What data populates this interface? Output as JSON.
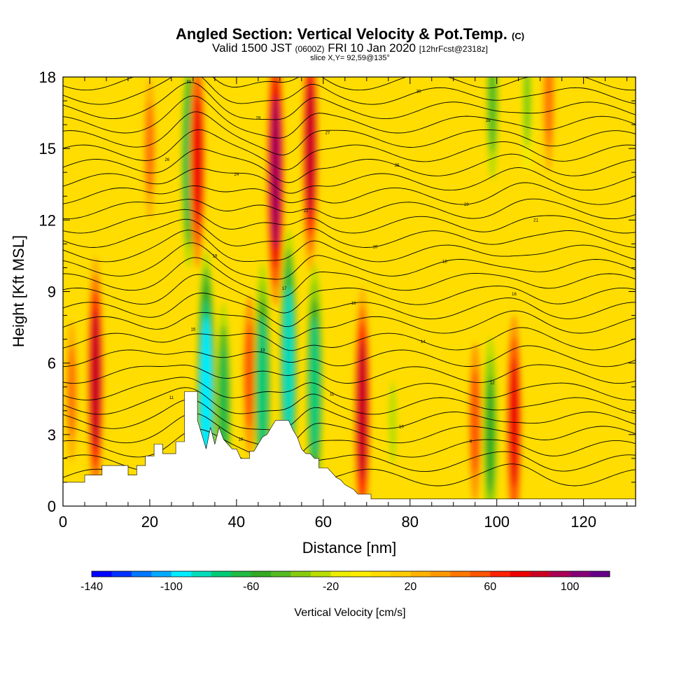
{
  "title": {
    "main": "Angled Section: Vertical Velocity & Pot.Temp.",
    "main_tag": "(C)",
    "sub_a": "Valid 1500 JST",
    "sub_zulu": "(0600Z)",
    "sub_b": "FRI 10 Jan 2020",
    "sub_fcst": "[12hrFcst@2318z]",
    "slice": "slice X,Y= 92,59@135°"
  },
  "chart_data": {
    "type": "heatmap",
    "xlabel": "Distance [nm]",
    "ylabel": "Height [Kft MSL]",
    "xlim": [
      0,
      132
    ],
    "ylim": [
      0,
      18
    ],
    "x_ticks": [
      0,
      20,
      40,
      60,
      80,
      100,
      120
    ],
    "y_ticks": [
      0,
      3,
      6,
      9,
      12,
      15,
      18
    ],
    "colorbar": {
      "label": "Vertical Velocity [cm/s]",
      "min": -140,
      "max": 120,
      "step": 10,
      "tick_values": [
        -140,
        -100,
        -60,
        -20,
        20,
        60,
        100
      ],
      "colors": [
        "#0000ff",
        "#0033ff",
        "#0077ff",
        "#00aaff",
        "#00eeff",
        "#00ddbb",
        "#00cc77",
        "#22bb44",
        "#33aa22",
        "#55bb22",
        "#88cc11",
        "#bbdd00",
        "#eeee00",
        "#ffee00",
        "#ffdd00",
        "#ffcc00",
        "#ffb300",
        "#ff9900",
        "#ff7700",
        "#ff5500",
        "#ff2200",
        "#ee0000",
        "#cc0022",
        "#aa0055",
        "#880077",
        "#660088"
      ]
    },
    "velocity_features": [
      {
        "x": 7.5,
        "z": 5.3,
        "value": 70
      },
      {
        "x": 2,
        "z": 4.8,
        "value": 30
      },
      {
        "x": 20,
        "z": 15,
        "value": 30
      },
      {
        "x": 29,
        "z": 14.5,
        "value": -60
      },
      {
        "x": 31,
        "z": 14.5,
        "value": 60
      },
      {
        "x": 33,
        "z": 4.5,
        "value": -90
      },
      {
        "x": 37,
        "z": 4.0,
        "value": -60
      },
      {
        "x": 43,
        "z": 5.5,
        "value": 40
      },
      {
        "x": 46,
        "z": 5.0,
        "value": -70
      },
      {
        "x": 49,
        "z": 14,
        "value": 80
      },
      {
        "x": 52,
        "z": 6.0,
        "value": -80
      },
      {
        "x": 57,
        "z": 15,
        "value": 70
      },
      {
        "x": 58,
        "z": 5.0,
        "value": -70
      },
      {
        "x": 69,
        "z": 4.0,
        "value": 70
      },
      {
        "x": 76,
        "z": 3.5,
        "value": -20
      },
      {
        "x": 95,
        "z": 3.5,
        "value": 40
      },
      {
        "x": 98.5,
        "z": 3.0,
        "value": -50
      },
      {
        "x": 104,
        "z": 3.5,
        "value": 60
      },
      {
        "x": 99,
        "z": 17,
        "value": -40
      },
      {
        "x": 107,
        "z": 17,
        "value": -30
      },
      {
        "x": 112,
        "z": 17,
        "value": 30
      }
    ],
    "terrain": [
      [
        0,
        1
      ],
      [
        5,
        1
      ],
      [
        5,
        1.3
      ],
      [
        9,
        1.3
      ],
      [
        9,
        1.7
      ],
      [
        15,
        1.7
      ],
      [
        15,
        1.3
      ],
      [
        17,
        1.3
      ],
      [
        17,
        1.7
      ],
      [
        19,
        1.7
      ],
      [
        19,
        2.1
      ],
      [
        21,
        2.1
      ],
      [
        21,
        2.6
      ],
      [
        23,
        2.6
      ],
      [
        23,
        2.2
      ],
      [
        26,
        2.2
      ],
      [
        26,
        2.7
      ],
      [
        28,
        2.7
      ],
      [
        28,
        4.8
      ],
      [
        31,
        4.8
      ],
      [
        31,
        3.6
      ],
      [
        32,
        3.0
      ],
      [
        33,
        2.4
      ],
      [
        34,
        3.3
      ],
      [
        35,
        2.6
      ],
      [
        36,
        3.3
      ],
      [
        37,
        2.8
      ],
      [
        38,
        2.6
      ],
      [
        39,
        2.4
      ],
      [
        40,
        2.4
      ],
      [
        41,
        2.0
      ],
      [
        43,
        2.0
      ],
      [
        43,
        2.3
      ],
      [
        44,
        2.3
      ],
      [
        45,
        2.6
      ],
      [
        46,
        2.9
      ],
      [
        47,
        3.0
      ],
      [
        48,
        3.3
      ],
      [
        49,
        3.6
      ],
      [
        52,
        3.6
      ],
      [
        53,
        3.2
      ],
      [
        54,
        2.9
      ],
      [
        55,
        2.4
      ],
      [
        56,
        2.2
      ],
      [
        57,
        2.2
      ],
      [
        58,
        2.0
      ],
      [
        59,
        2.0
      ],
      [
        59,
        1.6
      ],
      [
        61,
        1.6
      ],
      [
        62,
        1.4
      ],
      [
        63,
        1.2
      ],
      [
        64,
        1.1
      ],
      [
        65,
        0.9
      ],
      [
        67,
        0.7
      ],
      [
        68,
        0.5
      ],
      [
        71,
        0.5
      ],
      [
        71,
        0.3
      ],
      [
        132,
        0.3
      ]
    ],
    "theta_contours": [
      {
        "value": "8",
        "z0": 1.2
      },
      {
        "value": "9",
        "z0": 1.8
      },
      {
        "value": "9",
        "z0": 2.4
      },
      {
        "value": "10",
        "z0": 3.0
      },
      {
        "value": "10",
        "z0": 3.6
      },
      {
        "value": "11",
        "z0": 4.2
      },
      {
        "value": "11",
        "z0": 4.8
      },
      {
        "value": "12",
        "z0": 5.5
      },
      {
        "value": "13",
        "z0": 6.2
      },
      {
        "value": "14",
        "z0": 6.9
      },
      {
        "value": "15",
        "z0": 7.6
      },
      {
        "value": "16",
        "z0": 8.2
      },
      {
        "value": "16",
        "z0": 8.8
      },
      {
        "value": "17",
        "z0": 9.4
      },
      {
        "value": "18",
        "z0": 10.0
      },
      {
        "value": "19",
        "z0": 10.6
      },
      {
        "value": "20",
        "z0": 11.2
      },
      {
        "value": "21",
        "z0": 11.8
      },
      {
        "value": "22",
        "z0": 12.4
      },
      {
        "value": "23",
        "z0": 13.0
      },
      {
        "value": "24",
        "z0": 13.6
      },
      {
        "value": "25",
        "z0": 14.2
      },
      {
        "value": "26",
        "z0": 14.8
      },
      {
        "value": "27",
        "z0": 15.4
      },
      {
        "value": "28",
        "z0": 16.0
      },
      {
        "value": "29",
        "z0": 16.6
      },
      {
        "value": "30",
        "z0": 17.2
      },
      {
        "value": "31",
        "z0": 17.8
      }
    ]
  }
}
